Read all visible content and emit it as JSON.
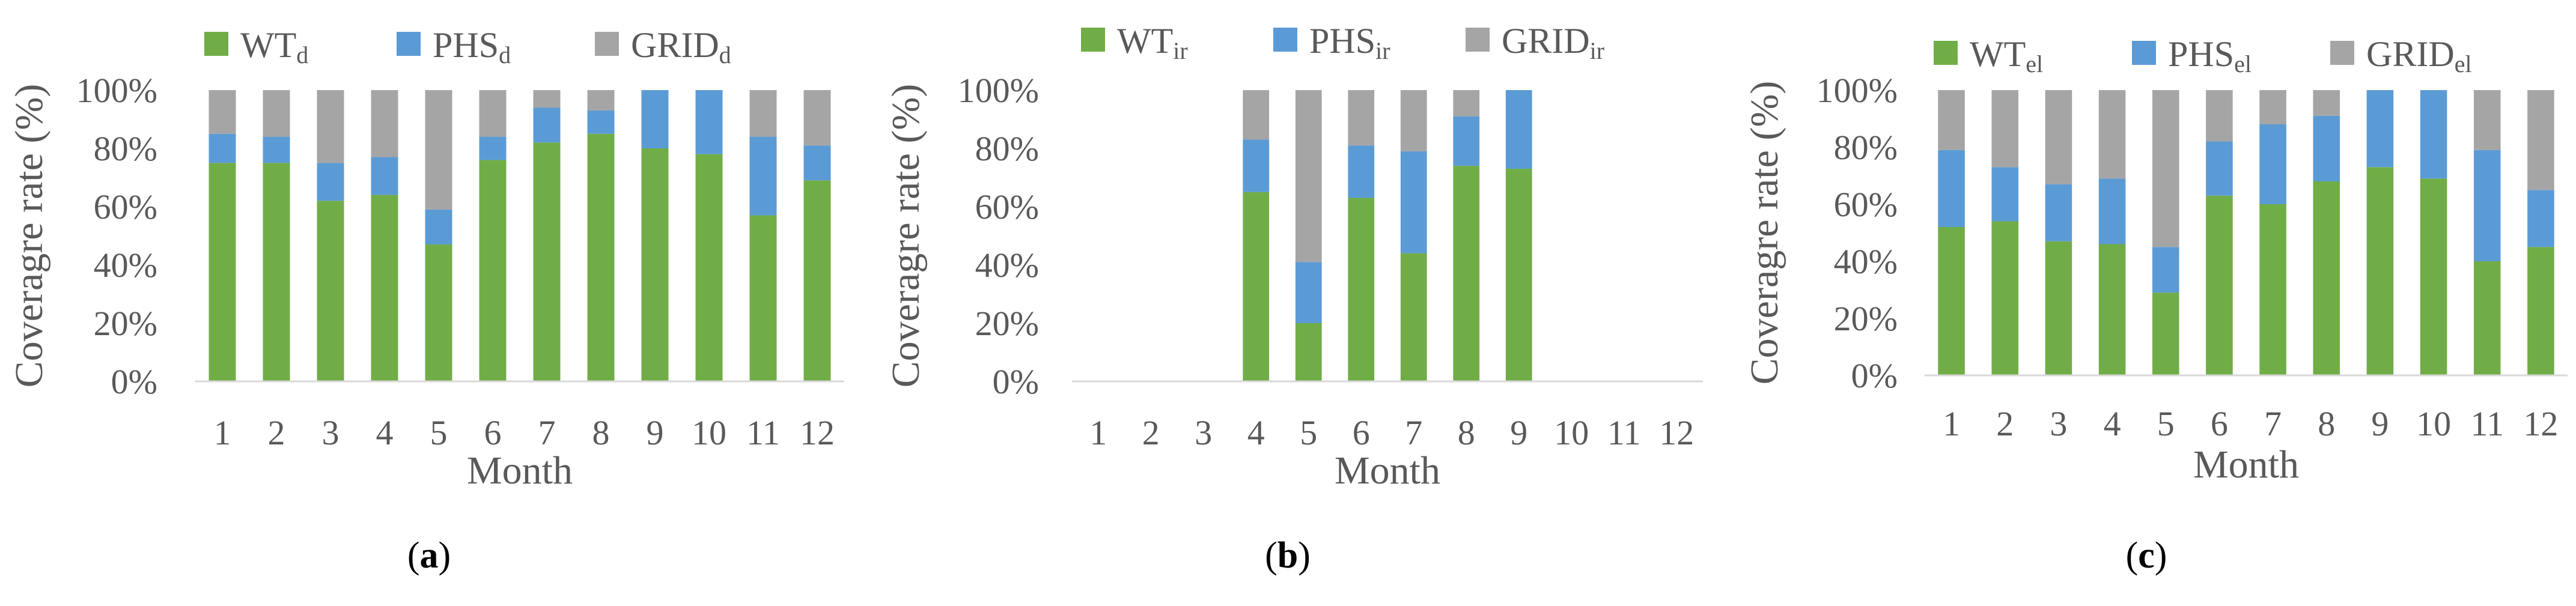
{
  "colors": {
    "wt": "#70ad47",
    "phs": "#5b9bd5",
    "grid": "#a5a5a5",
    "axis": "#d9d9d9",
    "text": "#595959"
  },
  "chart_data": [
    {
      "type": "bar",
      "stacked": true,
      "panel_label": "a",
      "xlabel": "Month",
      "ylabel": "Coveragre rate (%)",
      "ylim": [
        0,
        100
      ],
      "yticks": [
        "0%",
        "20%",
        "40%",
        "60%",
        "80%",
        "100%"
      ],
      "categories": [
        "1",
        "2",
        "3",
        "4",
        "5",
        "6",
        "7",
        "8",
        "9",
        "10",
        "11",
        "12"
      ],
      "legend": [
        {
          "base": "WT",
          "sub": "d"
        },
        {
          "base": "PHS",
          "sub": "d"
        },
        {
          "base": "GRID",
          "sub": "d"
        }
      ],
      "series": [
        {
          "name": "WT_d",
          "values": [
            75,
            75,
            62,
            64,
            47,
            76,
            82,
            85,
            80,
            78,
            57,
            69
          ]
        },
        {
          "name": "PHS_d",
          "values": [
            10,
            9,
            13,
            13,
            12,
            8,
            12,
            8,
            20,
            22,
            27,
            12
          ]
        },
        {
          "name": "GRID_d",
          "values": [
            15,
            16,
            25,
            23,
            41,
            16,
            6,
            7,
            0,
            0,
            16,
            19
          ]
        }
      ]
    },
    {
      "type": "bar",
      "stacked": true,
      "panel_label": "b",
      "xlabel": "Month",
      "ylabel": "Coveragre rate (%)",
      "ylim": [
        0,
        100
      ],
      "yticks": [
        "0%",
        "20%",
        "40%",
        "60%",
        "80%",
        "100%"
      ],
      "categories": [
        "1",
        "2",
        "3",
        "4",
        "5",
        "6",
        "7",
        "8",
        "9",
        "10",
        "11",
        "12"
      ],
      "legend": [
        {
          "base": "WT",
          "sub": "ir"
        },
        {
          "base": "PHS",
          "sub": "ir"
        },
        {
          "base": "GRID",
          "sub": "ir"
        }
      ],
      "series": [
        {
          "name": "WT_ir",
          "values": [
            0,
            0,
            0,
            65,
            20,
            63,
            44,
            74,
            73,
            0,
            0,
            0
          ]
        },
        {
          "name": "PHS_ir",
          "values": [
            0,
            0,
            0,
            18,
            21,
            18,
            35,
            17,
            27,
            0,
            0,
            0
          ]
        },
        {
          "name": "GRID_ir",
          "values": [
            0,
            0,
            0,
            17,
            59,
            19,
            21,
            9,
            0,
            0,
            0,
            0
          ]
        }
      ]
    },
    {
      "type": "bar",
      "stacked": true,
      "panel_label": "c",
      "xlabel": "Month",
      "ylabel": "Coveragre rate (%)",
      "ylim": [
        0,
        100
      ],
      "yticks": [
        "0%",
        "20%",
        "40%",
        "60%",
        "80%",
        "100%"
      ],
      "categories": [
        "1",
        "2",
        "3",
        "4",
        "5",
        "6",
        "7",
        "8",
        "9",
        "10",
        "11",
        "12"
      ],
      "legend": [
        {
          "base": "WT",
          "sub": "el"
        },
        {
          "base": "PHS",
          "sub": "el"
        },
        {
          "base": "GRID",
          "sub": "el"
        }
      ],
      "series": [
        {
          "name": "WT_el",
          "values": [
            52,
            54,
            47,
            46,
            29,
            63,
            60,
            68,
            73,
            69,
            40,
            45
          ]
        },
        {
          "name": "PHS_el",
          "values": [
            27,
            19,
            20,
            23,
            16,
            19,
            28,
            23,
            27,
            31,
            39,
            20
          ]
        },
        {
          "name": "GRID_el",
          "values": [
            21,
            27,
            33,
            31,
            55,
            18,
            12,
            9,
            0,
            0,
            21,
            35
          ]
        }
      ]
    }
  ]
}
